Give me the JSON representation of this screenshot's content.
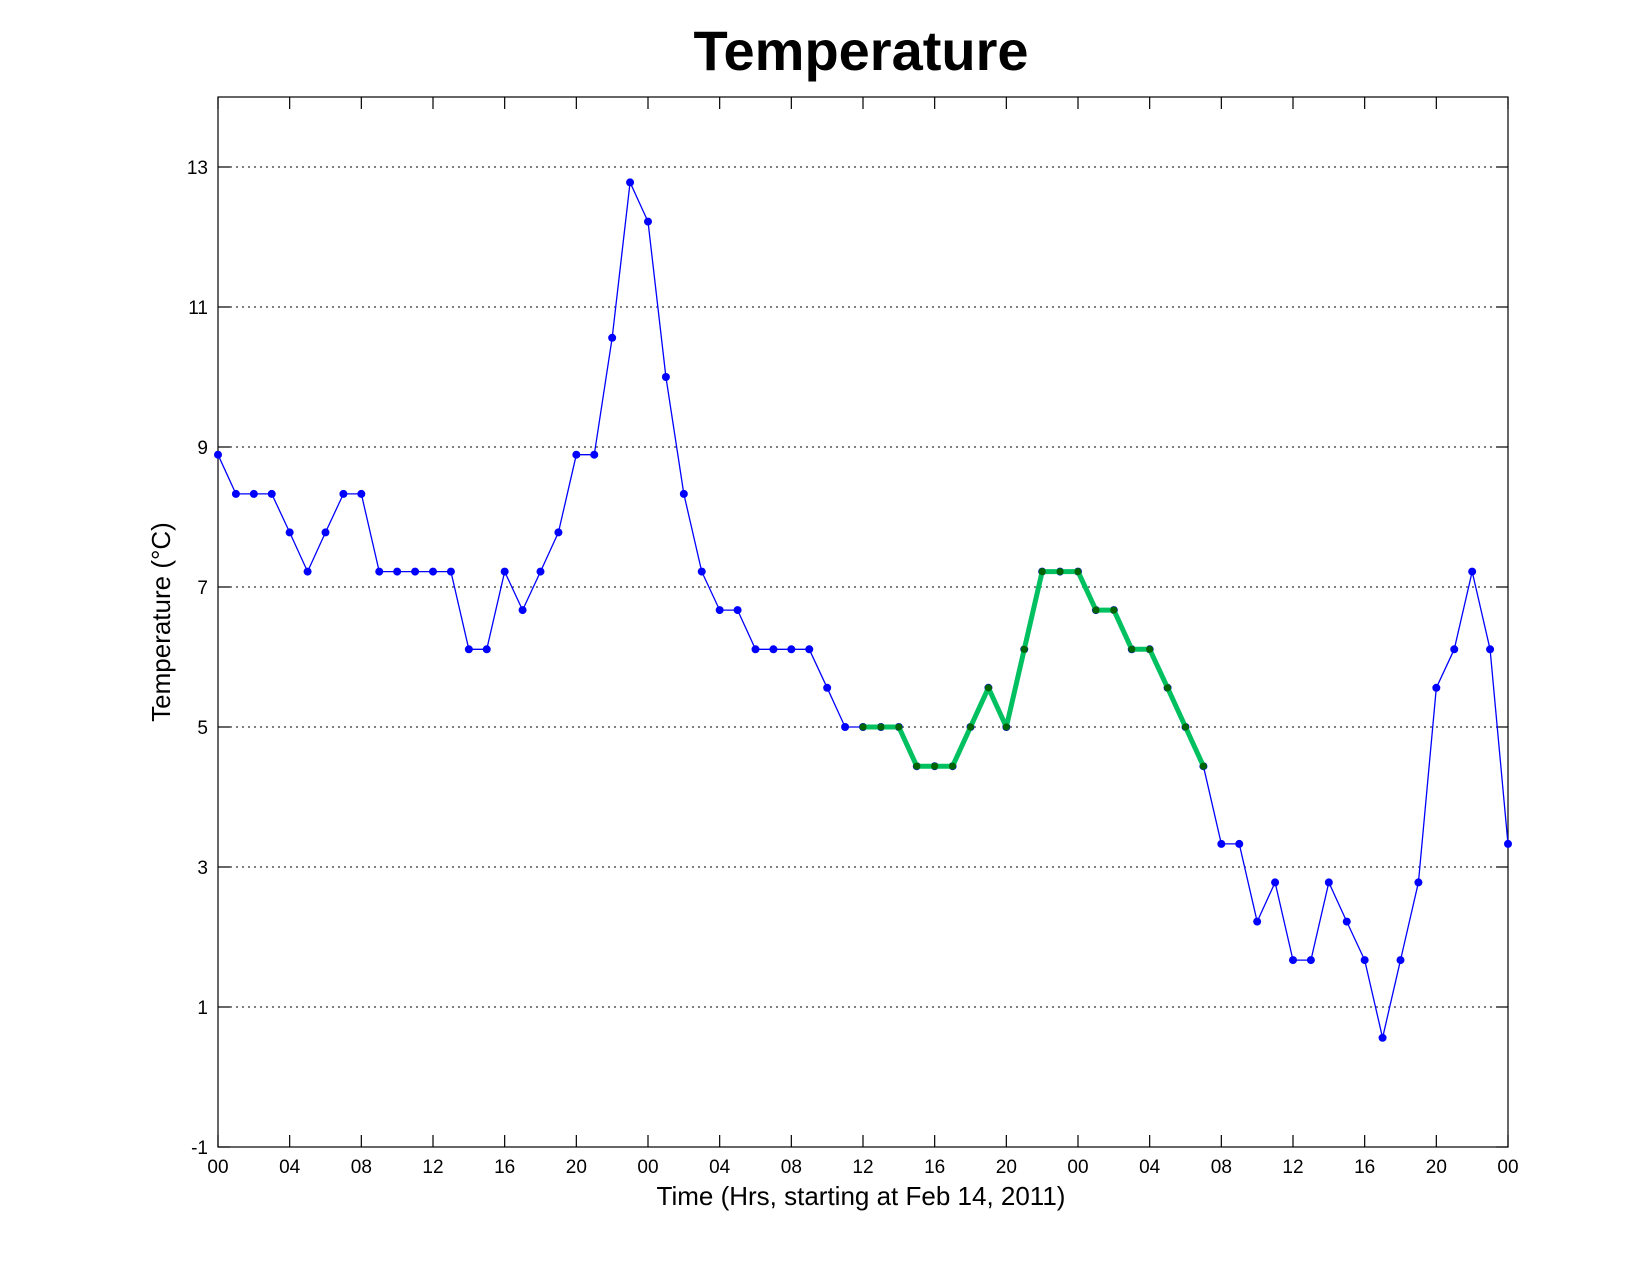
{
  "chart_data": {
    "type": "line",
    "title": "Temperature",
    "xlabel": "Time (Hrs, starting at Feb 14, 2011)",
    "ylabel": "Temperature (°C)",
    "xlim": [
      0,
      72
    ],
    "ylim": [
      -1,
      14
    ],
    "yticks": [
      -1,
      1,
      3,
      5,
      7,
      9,
      11,
      13
    ],
    "xticks": [
      {
        "x": 0,
        "label": "00"
      },
      {
        "x": 4,
        "label": "04"
      },
      {
        "x": 8,
        "label": "08"
      },
      {
        "x": 12,
        "label": "12"
      },
      {
        "x": 16,
        "label": "16"
      },
      {
        "x": 20,
        "label": "20"
      },
      {
        "x": 24,
        "label": "00"
      },
      {
        "x": 28,
        "label": "04"
      },
      {
        "x": 32,
        "label": "08"
      },
      {
        "x": 36,
        "label": "12"
      },
      {
        "x": 40,
        "label": "16"
      },
      {
        "x": 44,
        "label": "20"
      },
      {
        "x": 48,
        "label": "00"
      },
      {
        "x": 52,
        "label": "04"
      },
      {
        "x": 56,
        "label": "08"
      },
      {
        "x": 60,
        "label": "12"
      },
      {
        "x": 64,
        "label": "16"
      },
      {
        "x": 68,
        "label": "20"
      },
      {
        "x": 72,
        "label": "00"
      }
    ],
    "grid": "y-dotted",
    "series": [
      {
        "color": "#0000ff",
        "x": [
          0,
          1,
          2,
          3,
          4,
          5,
          6,
          7,
          8,
          9,
          10,
          11,
          12,
          13,
          14,
          15,
          16,
          17,
          18,
          19,
          20,
          21,
          22,
          23,
          24,
          25,
          26,
          27,
          28,
          29,
          30,
          31,
          32,
          33,
          34,
          35,
          36,
          37,
          38,
          39,
          40,
          41,
          42,
          43,
          44,
          45,
          46,
          47,
          48,
          49,
          50,
          51,
          52,
          53,
          54,
          55,
          56,
          57,
          58,
          59,
          60,
          61,
          62,
          63,
          64,
          65,
          66,
          67,
          68,
          69,
          70,
          71,
          72
        ],
        "values": [
          8.89,
          8.33,
          8.33,
          8.33,
          7.78,
          7.22,
          7.78,
          8.33,
          8.33,
          7.22,
          7.22,
          7.22,
          7.22,
          7.22,
          6.11,
          6.11,
          7.22,
          6.67,
          7.22,
          7.78,
          8.89,
          8.89,
          10.56,
          12.78,
          12.22,
          10.0,
          8.33,
          7.22,
          6.67,
          6.67,
          6.11,
          6.11,
          6.11,
          6.11,
          5.56,
          5.0,
          5.0,
          5.0,
          5.0,
          4.44,
          4.44,
          4.44,
          5.0,
          5.56,
          5.0,
          6.11,
          7.22,
          7.22,
          7.22,
          6.67,
          6.67,
          6.11,
          6.11,
          5.56,
          5.0,
          4.44,
          3.33,
          3.33,
          2.22,
          2.78,
          1.67,
          1.67,
          2.78,
          2.22,
          1.67,
          0.56,
          1.67,
          2.78,
          5.56,
          6.11,
          7.22,
          6.11,
          3.33
        ]
      },
      {
        "color": "#00c060",
        "x": [
          36,
          37,
          38,
          39,
          40,
          41,
          42,
          43,
          44,
          45,
          46,
          47,
          48,
          49,
          50,
          51,
          52,
          53,
          54,
          55
        ],
        "values": [
          5.0,
          5.0,
          5.0,
          4.44,
          4.44,
          4.44,
          5.0,
          5.56,
          5.0,
          6.11,
          7.22,
          7.22,
          7.22,
          6.67,
          6.67,
          6.11,
          6.11,
          5.56,
          5.0,
          4.44
        ]
      }
    ]
  }
}
